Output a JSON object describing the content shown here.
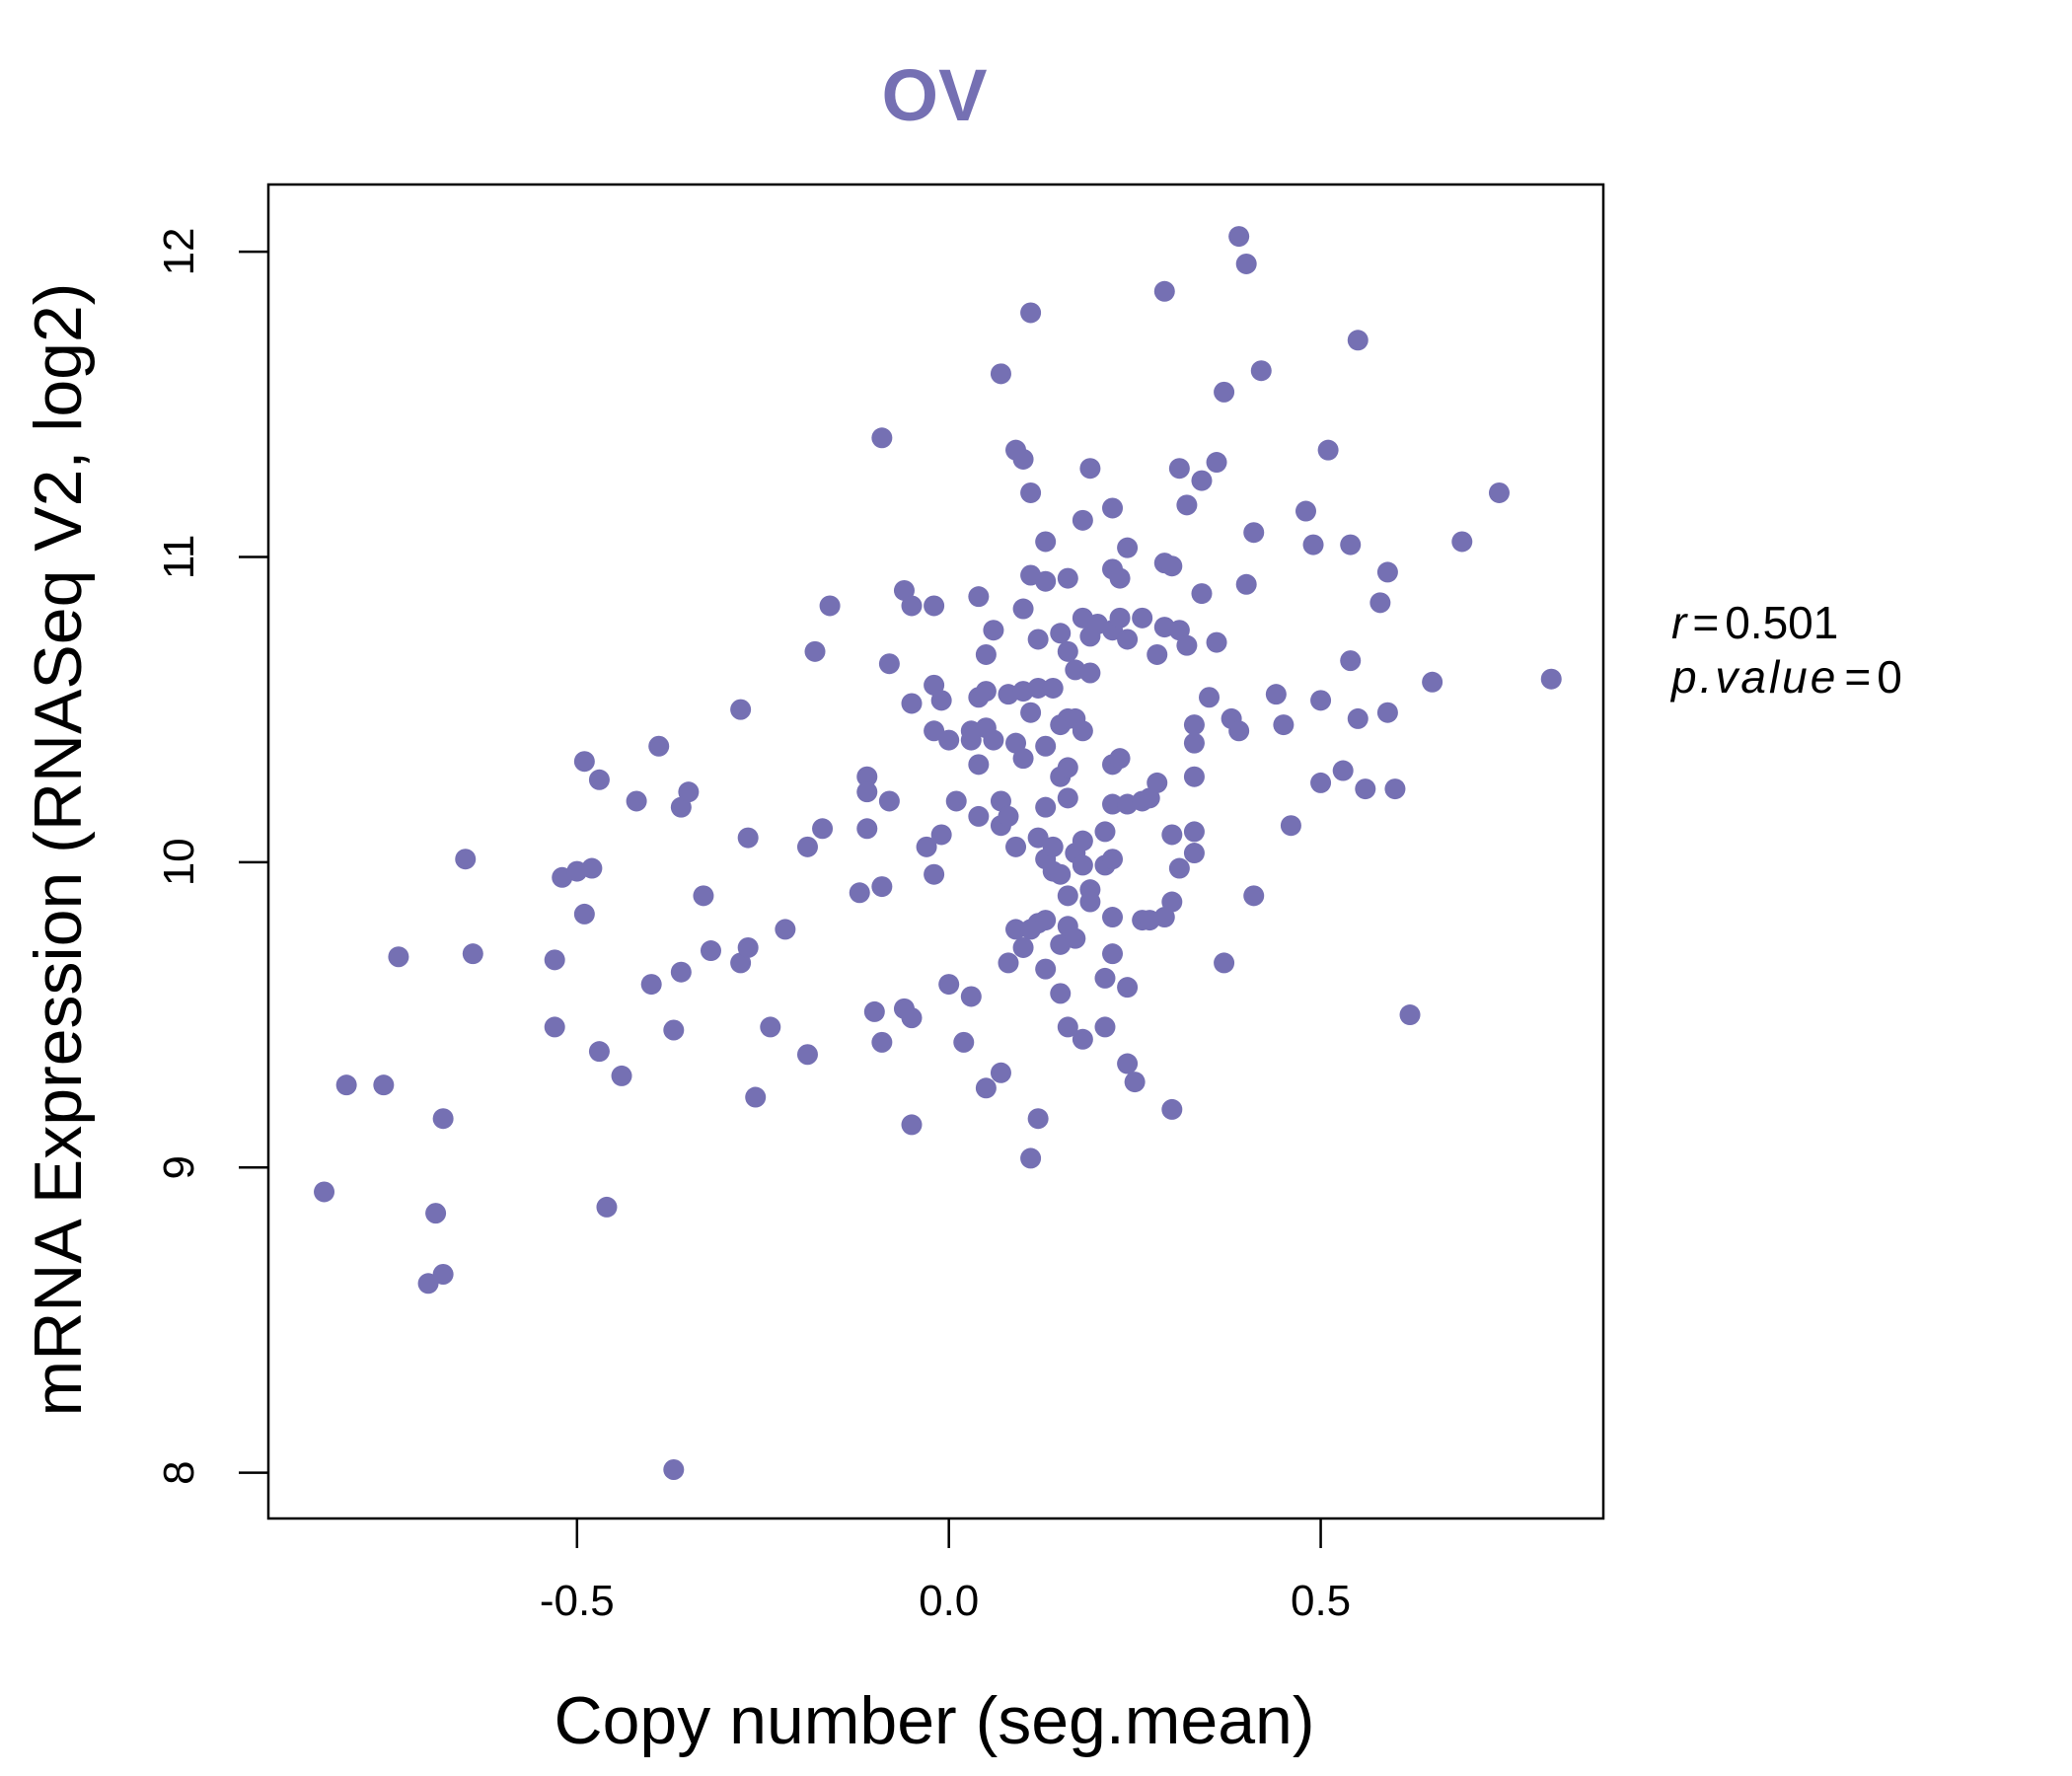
{
  "chart_data": {
    "type": "scatter",
    "title": "OV",
    "xlabel": "Copy number (seg.mean)",
    "ylabel": "mRNA Expression (RNASeq V2, log2)",
    "xlim": [
      -0.915,
      0.88
    ],
    "ylim": [
      7.85,
      12.22
    ],
    "xticks": [
      -0.5,
      0.0,
      0.5
    ],
    "xtick_labels": [
      "-0.5",
      "0.0",
      "0.5"
    ],
    "yticks": [
      8,
      9,
      10,
      11,
      12
    ],
    "ytick_labels": [
      "8",
      "9",
      "10",
      "11",
      "12"
    ],
    "grid": false,
    "colors": {
      "point": "#7570b3",
      "title": "#7570b3",
      "axis": "#000000"
    },
    "stats": {
      "r_label": "r",
      "r_value": "0.501",
      "p_label": "p.value",
      "p_value": "0"
    },
    "points": [
      [
        -0.84,
        8.92
      ],
      [
        -0.81,
        9.27
      ],
      [
        -0.76,
        9.27
      ],
      [
        -0.74,
        9.69
      ],
      [
        -0.7,
        8.62
      ],
      [
        -0.68,
        8.65
      ],
      [
        -0.69,
        8.85
      ],
      [
        -0.68,
        9.16
      ],
      [
        -0.65,
        10.01
      ],
      [
        -0.64,
        9.7
      ],
      [
        -0.53,
        9.46
      ],
      [
        -0.53,
        9.68
      ],
      [
        -0.52,
        9.95
      ],
      [
        -0.5,
        9.97
      ],
      [
        -0.49,
        9.83
      ],
      [
        -0.48,
        9.98
      ],
      [
        -0.49,
        10.33
      ],
      [
        -0.47,
        10.27
      ],
      [
        -0.47,
        9.38
      ],
      [
        -0.46,
        8.87
      ],
      [
        -0.44,
        9.3
      ],
      [
        -0.42,
        10.2
      ],
      [
        -0.4,
        9.6
      ],
      [
        -0.39,
        10.38
      ],
      [
        -0.37,
        9.45
      ],
      [
        -0.37,
        8.01
      ],
      [
        -0.36,
        10.18
      ],
      [
        -0.36,
        9.64
      ],
      [
        -0.35,
        10.23
      ],
      [
        -0.33,
        9.89
      ],
      [
        -0.32,
        9.71
      ],
      [
        -0.28,
        10.5
      ],
      [
        -0.28,
        9.67
      ],
      [
        -0.27,
        10.08
      ],
      [
        -0.27,
        9.72
      ],
      [
        -0.26,
        9.23
      ],
      [
        -0.24,
        9.46
      ],
      [
        -0.22,
        9.78
      ],
      [
        -0.19,
        9.37
      ],
      [
        -0.19,
        10.05
      ],
      [
        -0.18,
        10.69
      ],
      [
        -0.17,
        10.11
      ],
      [
        -0.16,
        10.84
      ],
      [
        -0.12,
        9.9
      ],
      [
        -0.11,
        10.28
      ],
      [
        -0.11,
        10.11
      ],
      [
        -0.11,
        10.23
      ],
      [
        -0.09,
        11.39
      ],
      [
        -0.1,
        9.51
      ],
      [
        -0.09,
        9.92
      ],
      [
        -0.09,
        9.41
      ],
      [
        -0.08,
        10.2
      ],
      [
        -0.08,
        10.65
      ],
      [
        -0.06,
        10.89
      ],
      [
        -0.06,
        9.52
      ],
      [
        -0.05,
        10.84
      ],
      [
        -0.05,
        9.49
      ],
      [
        -0.05,
        10.52
      ],
      [
        -0.05,
        9.14
      ],
      [
        -0.03,
        10.05
      ],
      [
        -0.02,
        10.84
      ],
      [
        -0.02,
        10.58
      ],
      [
        -0.02,
        10.43
      ],
      [
        -0.02,
        9.96
      ],
      [
        -0.01,
        10.09
      ],
      [
        -0.01,
        10.53
      ],
      [
        0.0,
        10.4
      ],
      [
        0.01,
        10.2
      ],
      [
        0.0,
        9.6
      ],
      [
        0.02,
        9.41
      ],
      [
        0.03,
        9.56
      ],
      [
        0.03,
        10.4
      ],
      [
        0.03,
        10.43
      ],
      [
        0.04,
        10.54
      ],
      [
        0.04,
        10.15
      ],
      [
        0.04,
        10.32
      ],
      [
        0.04,
        10.87
      ],
      [
        0.05,
        9.26
      ],
      [
        0.05,
        10.44
      ],
      [
        0.05,
        10.56
      ],
      [
        0.05,
        10.68
      ],
      [
        0.06,
        10.76
      ],
      [
        0.06,
        10.4
      ],
      [
        0.07,
        10.12
      ],
      [
        0.07,
        11.6
      ],
      [
        0.07,
        10.2
      ],
      [
        0.07,
        9.31
      ],
      [
        0.08,
        10.55
      ],
      [
        0.08,
        10.15
      ],
      [
        0.08,
        9.67
      ],
      [
        0.09,
        11.35
      ],
      [
        0.09,
        10.39
      ],
      [
        0.09,
        10.05
      ],
      [
        0.09,
        9.78
      ],
      [
        0.1,
        11.32
      ],
      [
        0.1,
        10.56
      ],
      [
        0.1,
        10.34
      ],
      [
        0.1,
        10.83
      ],
      [
        0.1,
        9.72
      ],
      [
        0.11,
        11.8
      ],
      [
        0.11,
        11.21
      ],
      [
        0.11,
        10.94
      ],
      [
        0.11,
        10.49
      ],
      [
        0.11,
        9.78
      ],
      [
        0.11,
        9.03
      ],
      [
        0.12,
        10.73
      ],
      [
        0.12,
        10.57
      ],
      [
        0.12,
        10.08
      ],
      [
        0.12,
        9.8
      ],
      [
        0.12,
        9.16
      ],
      [
        0.13,
        11.05
      ],
      [
        0.13,
        10.92
      ],
      [
        0.13,
        10.38
      ],
      [
        0.13,
        10.18
      ],
      [
        0.13,
        10.01
      ],
      [
        0.13,
        9.81
      ],
      [
        0.13,
        9.65
      ],
      [
        0.14,
        10.57
      ],
      [
        0.14,
        10.05
      ],
      [
        0.14,
        9.97
      ],
      [
        0.15,
        10.75
      ],
      [
        0.15,
        10.45
      ],
      [
        0.15,
        10.28
      ],
      [
        0.15,
        9.96
      ],
      [
        0.15,
        9.73
      ],
      [
        0.15,
        9.57
      ],
      [
        0.16,
        10.93
      ],
      [
        0.16,
        10.69
      ],
      [
        0.16,
        10.47
      ],
      [
        0.16,
        10.31
      ],
      [
        0.16,
        10.21
      ],
      [
        0.16,
        9.89
      ],
      [
        0.16,
        9.79
      ],
      [
        0.16,
        9.46
      ],
      [
        0.17,
        10.47
      ],
      [
        0.17,
        10.03
      ],
      [
        0.17,
        10.63
      ],
      [
        0.17,
        9.75
      ],
      [
        0.18,
        11.12
      ],
      [
        0.18,
        10.8
      ],
      [
        0.18,
        10.43
      ],
      [
        0.18,
        10.07
      ],
      [
        0.18,
        9.99
      ],
      [
        0.18,
        9.42
      ],
      [
        0.19,
        11.29
      ],
      [
        0.19,
        10.74
      ],
      [
        0.19,
        10.62
      ],
      [
        0.19,
        9.91
      ],
      [
        0.19,
        9.87
      ],
      [
        0.2,
        10.78
      ],
      [
        0.21,
        10.1
      ],
      [
        0.21,
        9.99
      ],
      [
        0.21,
        9.62
      ],
      [
        0.21,
        9.46
      ],
      [
        0.22,
        11.16
      ],
      [
        0.22,
        10.96
      ],
      [
        0.22,
        10.76
      ],
      [
        0.22,
        10.32
      ],
      [
        0.22,
        10.19
      ],
      [
        0.22,
        10.01
      ],
      [
        0.22,
        9.82
      ],
      [
        0.22,
        9.7
      ],
      [
        0.23,
        10.93
      ],
      [
        0.23,
        10.8
      ],
      [
        0.23,
        10.34
      ],
      [
        0.24,
        11.03
      ],
      [
        0.24,
        10.73
      ],
      [
        0.24,
        10.19
      ],
      [
        0.24,
        9.59
      ],
      [
        0.24,
        9.34
      ],
      [
        0.25,
        9.28
      ],
      [
        0.26,
        10.8
      ],
      [
        0.26,
        10.2
      ],
      [
        0.26,
        9.81
      ],
      [
        0.27,
        10.21
      ],
      [
        0.27,
        9.81
      ],
      [
        0.28,
        10.68
      ],
      [
        0.28,
        10.26
      ],
      [
        0.29,
        11.87
      ],
      [
        0.29,
        10.77
      ],
      [
        0.29,
        10.98
      ],
      [
        0.29,
        9.82
      ],
      [
        0.3,
        10.97
      ],
      [
        0.3,
        10.09
      ],
      [
        0.3,
        9.87
      ],
      [
        0.3,
        9.19
      ],
      [
        0.31,
        11.29
      ],
      [
        0.31,
        10.76
      ],
      [
        0.31,
        9.98
      ],
      [
        0.32,
        11.17
      ],
      [
        0.32,
        10.71
      ],
      [
        0.33,
        10.45
      ],
      [
        0.33,
        10.39
      ],
      [
        0.33,
        10.28
      ],
      [
        0.33,
        10.1
      ],
      [
        0.33,
        10.03
      ],
      [
        0.34,
        11.25
      ],
      [
        0.34,
        10.88
      ],
      [
        0.35,
        10.54
      ],
      [
        0.36,
        10.72
      ],
      [
        0.36,
        11.31
      ],
      [
        0.37,
        9.67
      ],
      [
        0.37,
        11.54
      ],
      [
        0.38,
        10.47
      ],
      [
        0.39,
        12.05
      ],
      [
        0.39,
        10.43
      ],
      [
        0.4,
        11.96
      ],
      [
        0.4,
        10.91
      ],
      [
        0.41,
        9.89
      ],
      [
        0.41,
        11.08
      ],
      [
        0.42,
        11.61
      ],
      [
        0.44,
        10.55
      ],
      [
        0.45,
        10.45
      ],
      [
        0.46,
        10.12
      ],
      [
        0.48,
        11.15
      ],
      [
        0.49,
        11.04
      ],
      [
        0.5,
        10.26
      ],
      [
        0.5,
        10.53
      ],
      [
        0.51,
        11.35
      ],
      [
        0.53,
        10.3
      ],
      [
        0.54,
        10.66
      ],
      [
        0.54,
        11.04
      ],
      [
        0.55,
        10.47
      ],
      [
        0.56,
        10.24
      ],
      [
        0.55,
        11.71
      ],
      [
        0.58,
        10.85
      ],
      [
        0.59,
        10.95
      ],
      [
        0.59,
        10.49
      ],
      [
        0.6,
        10.24
      ],
      [
        0.62,
        9.5
      ],
      [
        0.65,
        10.59
      ],
      [
        0.69,
        11.05
      ],
      [
        0.74,
        11.21
      ],
      [
        0.81,
        10.6
      ]
    ]
  }
}
